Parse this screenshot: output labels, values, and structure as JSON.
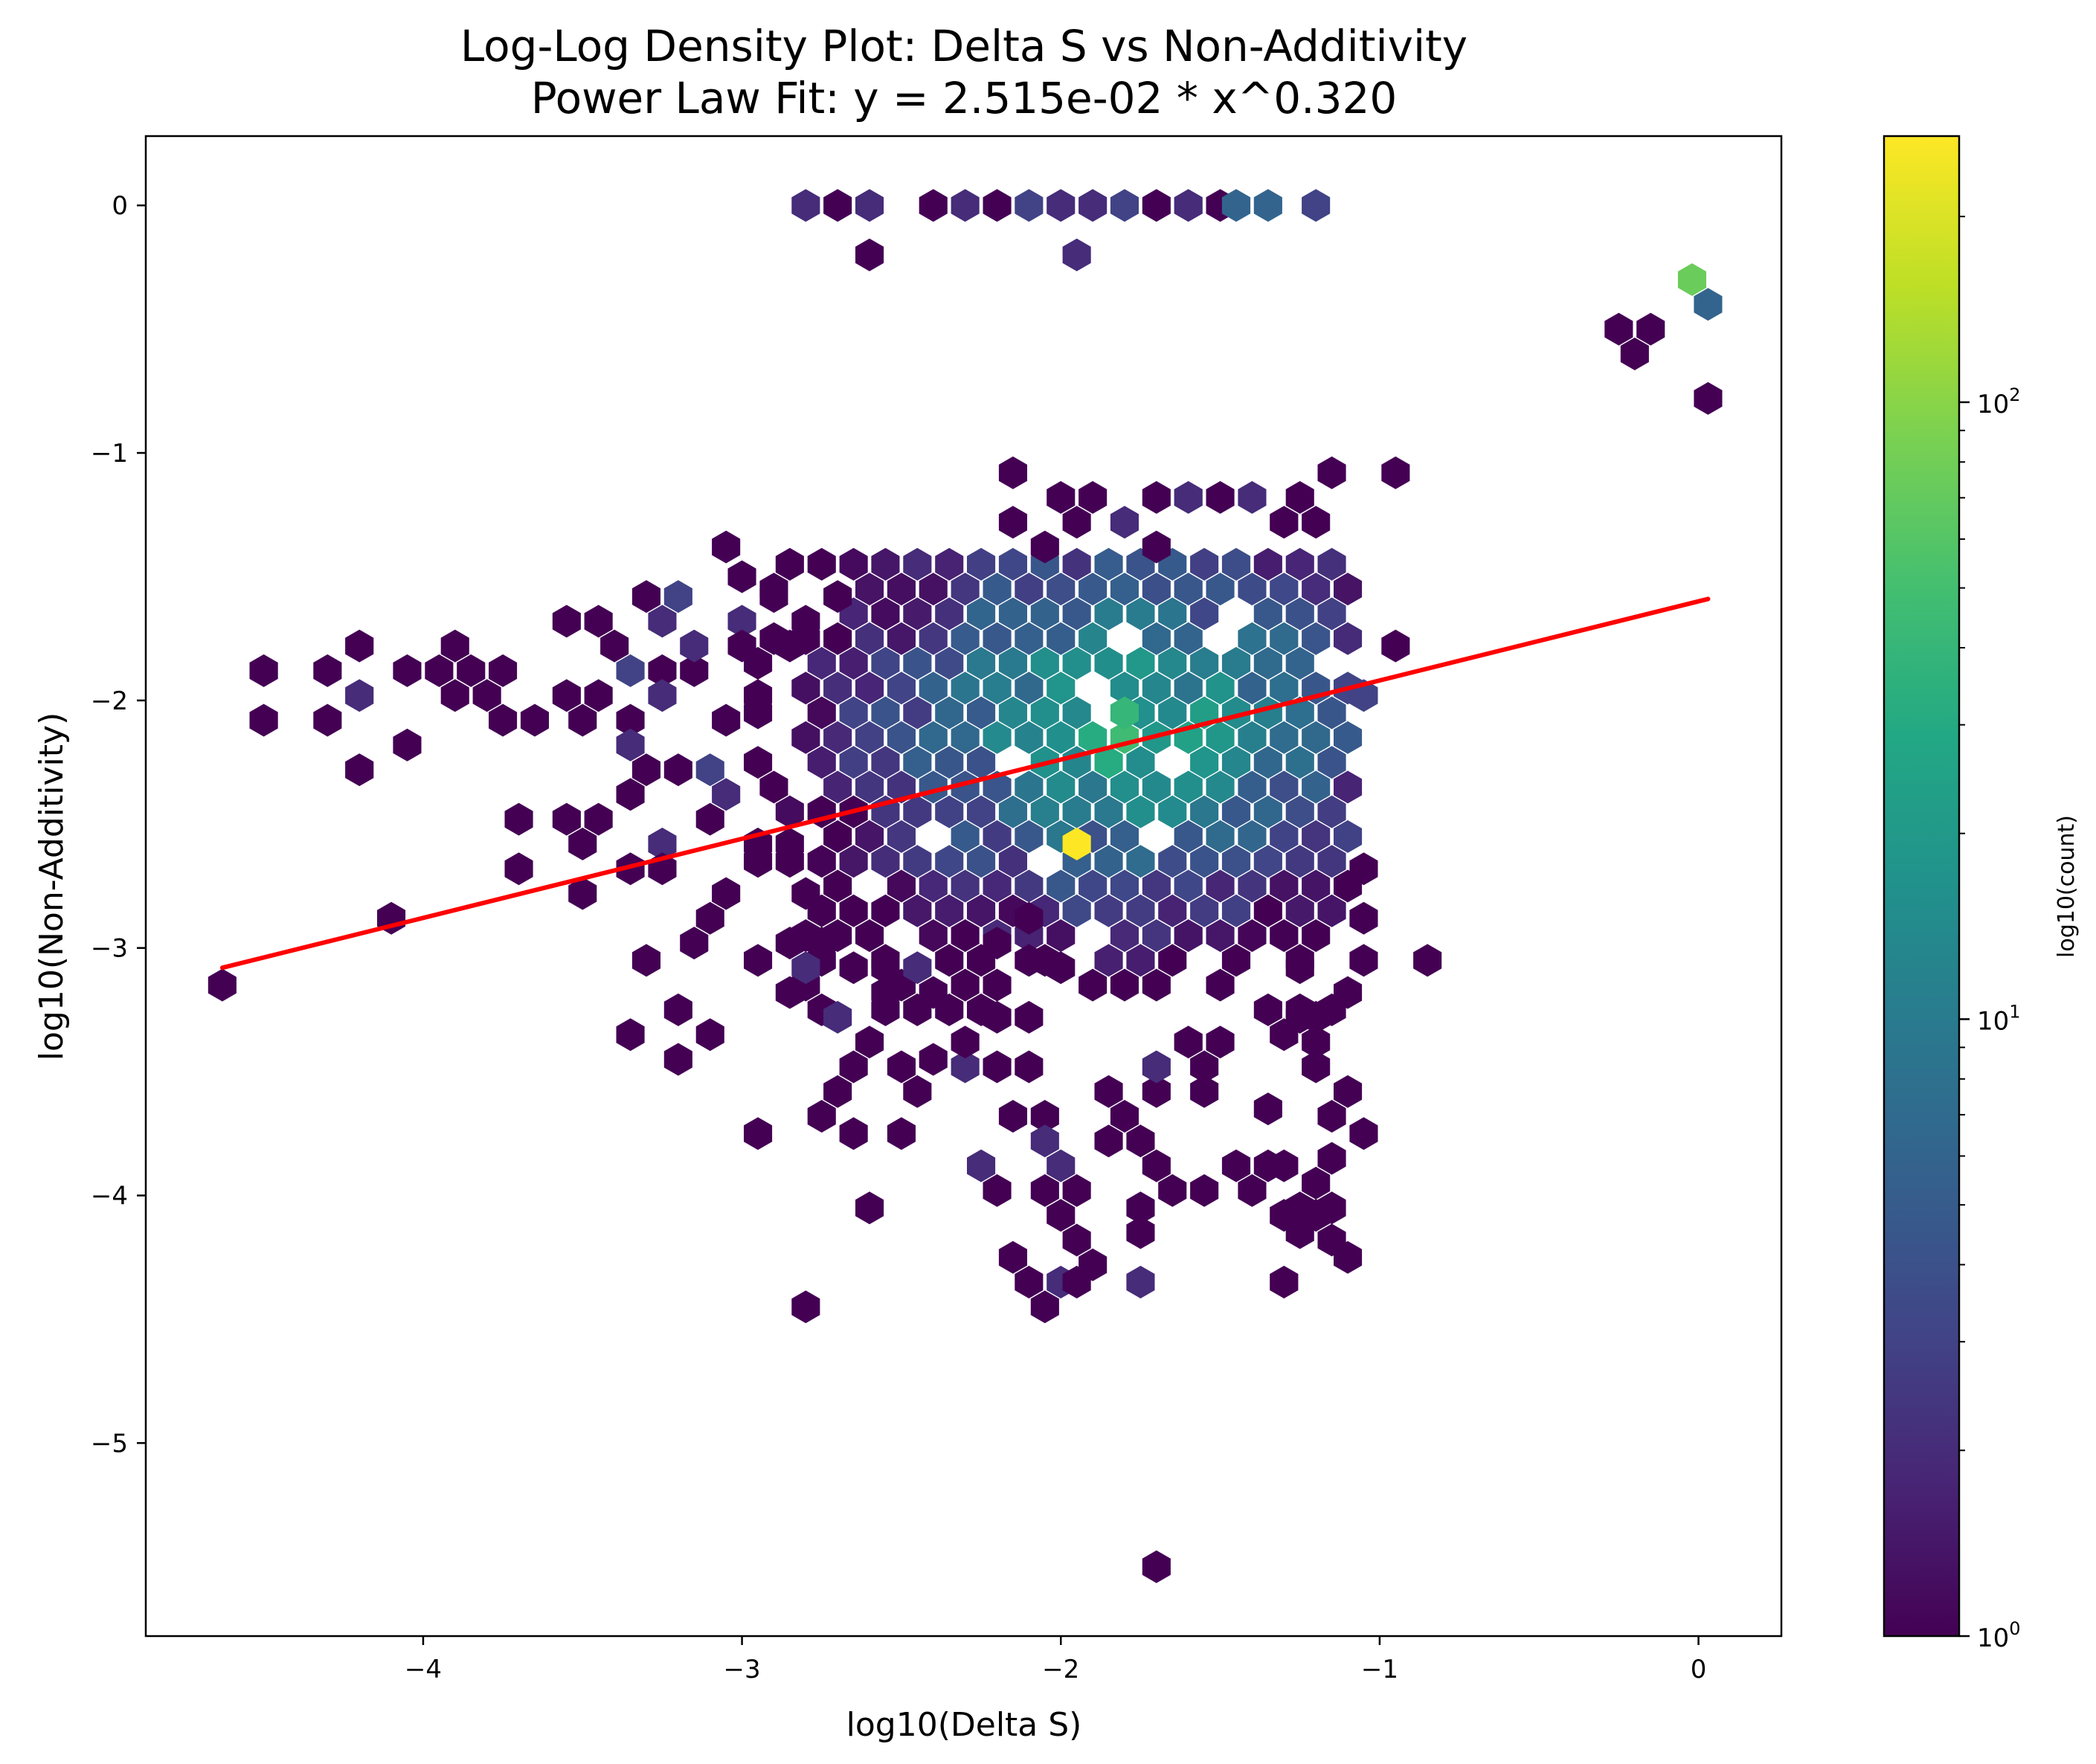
{
  "chart_data": {
    "type": "heatmap",
    "subtype": "hexbin",
    "title": "Log-Log Density Plot: Delta S vs Non-Additivity",
    "subtitle": "Power Law Fit: y = 2.515e-02 * x^0.320",
    "xlabel": "log10(Delta S)",
    "ylabel": "log10(Non-Additivity)",
    "xlim": [
      -4.87,
      0.26
    ],
    "ylim": [
      -5.78,
      0.28
    ],
    "x_ticks": [
      {
        "value": -4,
        "label": "−4"
      },
      {
        "value": -3,
        "label": "−3"
      },
      {
        "value": -2,
        "label": "−2"
      },
      {
        "value": -1,
        "label": "−1"
      },
      {
        "value": 0,
        "label": "0"
      }
    ],
    "y_ticks": [
      {
        "value": 0,
        "label": "0"
      },
      {
        "value": -1,
        "label": "−1"
      },
      {
        "value": -2,
        "label": "−2"
      },
      {
        "value": -3,
        "label": "−3"
      },
      {
        "value": -4,
        "label": "−4"
      },
      {
        "value": -5,
        "label": "−5"
      }
    ],
    "grid": false,
    "fit_line": {
      "color": "#ff0000",
      "points": [
        [
          -4.63,
          -3.08
        ],
        [
          0.03,
          -1.59
        ]
      ]
    },
    "colorbar": {
      "label": "log10(count)",
      "scale": "log",
      "range": [
        1,
        270
      ],
      "colormap": "viridis",
      "ticks": [
        {
          "value": 1,
          "base": "10",
          "exp": "0"
        },
        {
          "value": 10,
          "base": "10",
          "exp": "1"
        },
        {
          "value": 100,
          "base": "10",
          "exp": "2"
        }
      ]
    },
    "bins": [
      {
        "x": -2.8,
        "y": 0.0,
        "count": 2
      },
      {
        "x": -2.7,
        "y": 0.0,
        "count": 1
      },
      {
        "x": -2.6,
        "y": 0.0,
        "count": 2
      },
      {
        "x": -2.4,
        "y": 0.0,
        "count": 1
      },
      {
        "x": -2.3,
        "y": 0.0,
        "count": 2
      },
      {
        "x": -2.2,
        "y": 0.0,
        "count": 1
      },
      {
        "x": -2.1,
        "y": 0.0,
        "count": 3
      },
      {
        "x": -2.0,
        "y": 0.0,
        "count": 2
      },
      {
        "x": -1.9,
        "y": 0.0,
        "count": 2
      },
      {
        "x": -1.8,
        "y": 0.0,
        "count": 3
      },
      {
        "x": -1.7,
        "y": 0.0,
        "count": 1
      },
      {
        "x": -1.6,
        "y": 0.0,
        "count": 2
      },
      {
        "x": -1.5,
        "y": 0.0,
        "count": 1
      },
      {
        "x": -1.45,
        "y": 0.0,
        "count": 6
      },
      {
        "x": -1.35,
        "y": 0.0,
        "count": 6
      },
      {
        "x": -1.2,
        "y": 0.0,
        "count": 3
      },
      {
        "x": -2.6,
        "y": -0.2,
        "count": 1
      },
      {
        "x": -1.95,
        "y": -0.2,
        "count": 2
      },
      {
        "x": -0.02,
        "y": -0.3,
        "count": 75
      },
      {
        "x": 0.03,
        "y": -0.4,
        "count": 6
      },
      {
        "x": -0.25,
        "y": -0.5,
        "count": 1
      },
      {
        "x": -0.15,
        "y": -0.5,
        "count": 1
      },
      {
        "x": -0.2,
        "y": -0.6,
        "count": 1
      },
      {
        "x": 0.03,
        "y": -0.78,
        "count": 1
      },
      {
        "x": -2.15,
        "y": -1.08,
        "count": 1
      },
      {
        "x": -1.15,
        "y": -1.08,
        "count": 1
      },
      {
        "x": -0.95,
        "y": -1.08,
        "count": 1
      },
      {
        "x": -2.0,
        "y": -1.18,
        "count": 1
      },
      {
        "x": -1.9,
        "y": -1.18,
        "count": 1
      },
      {
        "x": -1.7,
        "y": -1.18,
        "count": 1
      },
      {
        "x": -1.6,
        "y": -1.18,
        "count": 2
      },
      {
        "x": -1.5,
        "y": -1.18,
        "count": 1
      },
      {
        "x": -1.4,
        "y": -1.18,
        "count": 2
      },
      {
        "x": -1.25,
        "y": -1.18,
        "count": 1
      },
      {
        "x": -2.15,
        "y": -1.28,
        "count": 1
      },
      {
        "x": -1.95,
        "y": -1.28,
        "count": 1
      },
      {
        "x": -1.8,
        "y": -1.28,
        "count": 2
      },
      {
        "x": -1.3,
        "y": -1.28,
        "count": 1
      },
      {
        "x": -1.2,
        "y": -1.28,
        "count": 1
      },
      {
        "x": -3.05,
        "y": -1.38,
        "count": 1
      },
      {
        "x": -2.05,
        "y": -1.38,
        "count": 1
      },
      {
        "x": -1.7,
        "y": -1.38,
        "count": 1
      },
      {
        "x": -3.3,
        "y": -1.58,
        "count": 1
      },
      {
        "x": -3.2,
        "y": -1.58,
        "count": 3
      },
      {
        "x": -3.0,
        "y": -1.5,
        "count": 1
      },
      {
        "x": -2.9,
        "y": -1.58,
        "count": 1
      },
      {
        "x": -3.55,
        "y": -1.68,
        "count": 1
      },
      {
        "x": -3.45,
        "y": -1.68,
        "count": 1
      },
      {
        "x": -3.25,
        "y": -1.68,
        "count": 2
      },
      {
        "x": -3.0,
        "y": -1.68,
        "count": 2
      },
      {
        "x": -2.7,
        "y": -1.58,
        "count": 1
      },
      {
        "x": -2.8,
        "y": -1.68,
        "count": 1
      },
      {
        "x": -4.5,
        "y": -1.88,
        "count": 1
      },
      {
        "x": -4.3,
        "y": -1.88,
        "count": 1
      },
      {
        "x": -4.2,
        "y": -1.78,
        "count": 1
      },
      {
        "x": -4.05,
        "y": -1.88,
        "count": 1
      },
      {
        "x": -3.95,
        "y": -1.88,
        "count": 1
      },
      {
        "x": -3.85,
        "y": -1.88,
        "count": 1
      },
      {
        "x": -3.9,
        "y": -1.78,
        "count": 1
      },
      {
        "x": -3.9,
        "y": -1.98,
        "count": 1
      },
      {
        "x": -3.75,
        "y": -1.88,
        "count": 1
      },
      {
        "x": -3.4,
        "y": -1.78,
        "count": 1
      },
      {
        "x": -3.35,
        "y": -1.88,
        "count": 3
      },
      {
        "x": -3.25,
        "y": -1.88,
        "count": 1
      },
      {
        "x": -3.15,
        "y": -1.88,
        "count": 1
      },
      {
        "x": -3.15,
        "y": -1.78,
        "count": 2
      },
      {
        "x": -3.0,
        "y": -1.78,
        "count": 1
      },
      {
        "x": -2.85,
        "y": -1.78,
        "count": 1
      },
      {
        "x": -4.5,
        "y": -2.08,
        "count": 1
      },
      {
        "x": -4.3,
        "y": -2.08,
        "count": 1
      },
      {
        "x": -4.2,
        "y": -1.98,
        "count": 2
      },
      {
        "x": -4.2,
        "y": -2.28,
        "count": 1
      },
      {
        "x": -4.05,
        "y": -2.18,
        "count": 1
      },
      {
        "x": -3.8,
        "y": -1.98,
        "count": 1
      },
      {
        "x": -3.75,
        "y": -2.08,
        "count": 1
      },
      {
        "x": -3.65,
        "y": -2.08,
        "count": 1
      },
      {
        "x": -3.55,
        "y": -1.98,
        "count": 1
      },
      {
        "x": -3.5,
        "y": -2.08,
        "count": 1
      },
      {
        "x": -3.45,
        "y": -1.98,
        "count": 1
      },
      {
        "x": -3.35,
        "y": -2.08,
        "count": 1
      },
      {
        "x": -3.25,
        "y": -1.98,
        "count": 2
      },
      {
        "x": -3.05,
        "y": -2.08,
        "count": 1
      },
      {
        "x": -2.95,
        "y": -1.98,
        "count": 1
      },
      {
        "x": -3.35,
        "y": -2.18,
        "count": 2
      },
      {
        "x": -3.3,
        "y": -2.28,
        "count": 1
      },
      {
        "x": -3.2,
        "y": -2.28,
        "count": 1
      },
      {
        "x": -3.35,
        "y": -2.38,
        "count": 1
      },
      {
        "x": -3.1,
        "y": -2.28,
        "count": 3
      },
      {
        "x": -3.05,
        "y": -2.38,
        "count": 2
      },
      {
        "x": -3.7,
        "y": -2.48,
        "count": 1
      },
      {
        "x": -3.55,
        "y": -2.48,
        "count": 1
      },
      {
        "x": -3.45,
        "y": -2.48,
        "count": 1
      },
      {
        "x": -3.5,
        "y": -2.58,
        "count": 1
      },
      {
        "x": -3.25,
        "y": -2.58,
        "count": 2
      },
      {
        "x": -3.1,
        "y": -2.48,
        "count": 1
      },
      {
        "x": -2.95,
        "y": -2.58,
        "count": 1
      },
      {
        "x": -2.85,
        "y": -2.58,
        "count": 1
      },
      {
        "x": -3.7,
        "y": -2.68,
        "count": 1
      },
      {
        "x": -3.35,
        "y": -2.68,
        "count": 1
      },
      {
        "x": -3.25,
        "y": -2.68,
        "count": 1
      },
      {
        "x": -3.5,
        "y": -2.78,
        "count": 1
      },
      {
        "x": -3.05,
        "y": -2.78,
        "count": 1
      },
      {
        "x": -4.1,
        "y": -2.88,
        "count": 1
      },
      {
        "x": -3.1,
        "y": -2.88,
        "count": 1
      },
      {
        "x": -3.15,
        "y": -2.98,
        "count": 1
      },
      {
        "x": -3.3,
        "y": -3.05,
        "count": 1
      },
      {
        "x": -4.63,
        "y": -3.15,
        "count": 1
      },
      {
        "x": -3.2,
        "y": -3.25,
        "count": 1
      },
      {
        "x": -3.1,
        "y": -3.35,
        "count": 1
      },
      {
        "x": -3.35,
        "y": -3.35,
        "count": 1
      },
      {
        "x": -3.2,
        "y": -3.45,
        "count": 1
      },
      {
        "x": -2.8,
        "y": -2.78,
        "count": 1
      },
      {
        "x": -2.85,
        "y": -2.98,
        "count": 1
      },
      {
        "x": -2.75,
        "y": -2.98,
        "count": 1
      },
      {
        "x": -2.8,
        "y": -3.08,
        "count": 2
      },
      {
        "x": -2.85,
        "y": -3.18,
        "count": 1
      },
      {
        "x": -2.7,
        "y": -3.28,
        "count": 2
      },
      {
        "x": -2.65,
        "y": -3.08,
        "count": 1
      },
      {
        "x": -2.55,
        "y": -3.08,
        "count": 1
      },
      {
        "x": -2.55,
        "y": -3.18,
        "count": 1
      },
      {
        "x": -2.45,
        "y": -3.08,
        "count": 2
      },
      {
        "x": -2.4,
        "y": -3.18,
        "count": 1
      },
      {
        "x": -2.95,
        "y": -3.75,
        "count": 1
      },
      {
        "x": -2.65,
        "y": -3.48,
        "count": 1
      },
      {
        "x": -2.6,
        "y": -3.38,
        "count": 1
      },
      {
        "x": -2.7,
        "y": -3.58,
        "count": 1
      },
      {
        "x": -2.75,
        "y": -3.68,
        "count": 1
      },
      {
        "x": -2.65,
        "y": -3.75,
        "count": 1
      },
      {
        "x": -2.5,
        "y": -3.48,
        "count": 1
      },
      {
        "x": -2.45,
        "y": -3.58,
        "count": 1
      },
      {
        "x": -2.4,
        "y": -3.45,
        "count": 1
      },
      {
        "x": -2.5,
        "y": -3.75,
        "count": 1
      },
      {
        "x": -2.3,
        "y": -3.48,
        "count": 2
      },
      {
        "x": -2.2,
        "y": -3.48,
        "count": 1
      },
      {
        "x": -2.1,
        "y": -3.48,
        "count": 1
      },
      {
        "x": -2.3,
        "y": -3.38,
        "count": 1
      },
      {
        "x": -2.2,
        "y": -3.28,
        "count": 1
      },
      {
        "x": -2.1,
        "y": -3.28,
        "count": 1
      },
      {
        "x": -2.2,
        "y": -3.98,
        "count": 1
      },
      {
        "x": -2.25,
        "y": -3.88,
        "count": 2
      },
      {
        "x": -2.15,
        "y": -3.68,
        "count": 1
      },
      {
        "x": -2.05,
        "y": -3.68,
        "count": 1
      },
      {
        "x": -2.05,
        "y": -3.78,
        "count": 2
      },
      {
        "x": -2.0,
        "y": -3.88,
        "count": 2
      },
      {
        "x": -2.05,
        "y": -3.98,
        "count": 1
      },
      {
        "x": -1.95,
        "y": -3.98,
        "count": 1
      },
      {
        "x": -2.0,
        "y": -4.08,
        "count": 1
      },
      {
        "x": -1.95,
        "y": -4.18,
        "count": 1
      },
      {
        "x": -1.9,
        "y": -4.28,
        "count": 1
      },
      {
        "x": -2.15,
        "y": -4.25,
        "count": 1
      },
      {
        "x": -2.1,
        "y": -4.35,
        "count": 1
      },
      {
        "x": -2.0,
        "y": -4.35,
        "count": 2
      },
      {
        "x": -1.95,
        "y": -4.35,
        "count": 1
      },
      {
        "x": -2.05,
        "y": -4.45,
        "count": 1
      },
      {
        "x": -2.6,
        "y": -4.05,
        "count": 1
      },
      {
        "x": -2.8,
        "y": -4.45,
        "count": 1
      },
      {
        "x": -1.75,
        "y": -4.35,
        "count": 2
      },
      {
        "x": -1.85,
        "y": -3.58,
        "count": 1
      },
      {
        "x": -1.8,
        "y": -3.68,
        "count": 1
      },
      {
        "x": -1.75,
        "y": -3.78,
        "count": 1
      },
      {
        "x": -1.85,
        "y": -3.78,
        "count": 1
      },
      {
        "x": -1.7,
        "y": -3.88,
        "count": 1
      },
      {
        "x": -1.65,
        "y": -3.98,
        "count": 1
      },
      {
        "x": -1.75,
        "y": -4.05,
        "count": 1
      },
      {
        "x": -1.55,
        "y": -3.98,
        "count": 1
      },
      {
        "x": -1.75,
        "y": -4.15,
        "count": 1
      },
      {
        "x": -1.45,
        "y": -3.88,
        "count": 1
      },
      {
        "x": -1.35,
        "y": -3.88,
        "count": 1
      },
      {
        "x": -1.3,
        "y": -3.88,
        "count": 1
      },
      {
        "x": -1.4,
        "y": -3.98,
        "count": 1
      },
      {
        "x": -1.35,
        "y": -3.65,
        "count": 1
      },
      {
        "x": -1.55,
        "y": -3.48,
        "count": 1
      },
      {
        "x": -1.6,
        "y": -3.38,
        "count": 1
      },
      {
        "x": -1.5,
        "y": -3.38,
        "count": 1
      },
      {
        "x": -1.55,
        "y": -3.58,
        "count": 1
      },
      {
        "x": -1.7,
        "y": -3.58,
        "count": 1
      },
      {
        "x": -1.7,
        "y": -3.48,
        "count": 2
      },
      {
        "x": -1.2,
        "y": -3.48,
        "count": 1
      },
      {
        "x": -1.1,
        "y": -3.58,
        "count": 1
      },
      {
        "x": -1.15,
        "y": -3.68,
        "count": 1
      },
      {
        "x": -1.05,
        "y": -3.75,
        "count": 1
      },
      {
        "x": -1.15,
        "y": -3.85,
        "count": 1
      },
      {
        "x": -1.2,
        "y": -3.95,
        "count": 1
      },
      {
        "x": -1.25,
        "y": -4.05,
        "count": 1
      },
      {
        "x": -1.3,
        "y": -4.08,
        "count": 1
      },
      {
        "x": -1.2,
        "y": -4.08,
        "count": 1
      },
      {
        "x": -1.15,
        "y": -4.05,
        "count": 1
      },
      {
        "x": -1.25,
        "y": -4.15,
        "count": 1
      },
      {
        "x": -1.15,
        "y": -4.18,
        "count": 1
      },
      {
        "x": -1.1,
        "y": -4.25,
        "count": 1
      },
      {
        "x": -1.3,
        "y": -4.35,
        "count": 1
      },
      {
        "x": -1.3,
        "y": -3.35,
        "count": 1
      },
      {
        "x": -1.2,
        "y": -3.28,
        "count": 1
      },
      {
        "x": -1.25,
        "y": -3.28,
        "count": 1
      },
      {
        "x": -1.2,
        "y": -3.38,
        "count": 1
      },
      {
        "x": -1.05,
        "y": -2.68,
        "count": 1
      },
      {
        "x": -1.05,
        "y": -2.88,
        "count": 1
      },
      {
        "x": -1.05,
        "y": -3.05,
        "count": 1
      },
      {
        "x": -1.1,
        "y": -3.18,
        "count": 1
      },
      {
        "x": -0.85,
        "y": -3.05,
        "count": 1
      },
      {
        "x": -1.25,
        "y": -3.08,
        "count": 1
      },
      {
        "x": -2.1,
        "y": -2.88,
        "count": 1
      },
      {
        "x": -2.2,
        "y": -2.98,
        "count": 1
      },
      {
        "x": -2.1,
        "y": -3.05,
        "count": 1
      },
      {
        "x": -2.0,
        "y": -3.08,
        "count": 1
      },
      {
        "x": -1.7,
        "y": -5.5,
        "count": 1
      },
      {
        "x": -1.05,
        "y": -1.98,
        "count": 3
      },
      {
        "x": -0.95,
        "y": -1.78,
        "count": 1
      }
    ],
    "dense_cluster": {
      "x_range": [
        -2.95,
        -1.05
      ],
      "y_range": [
        -3.35,
        -1.45
      ],
      "peak": {
        "x": -1.95,
        "y": -2.58,
        "count": 270
      },
      "hotspot": {
        "x": -1.8,
        "y": -2.05,
        "count": 40
      }
    }
  }
}
